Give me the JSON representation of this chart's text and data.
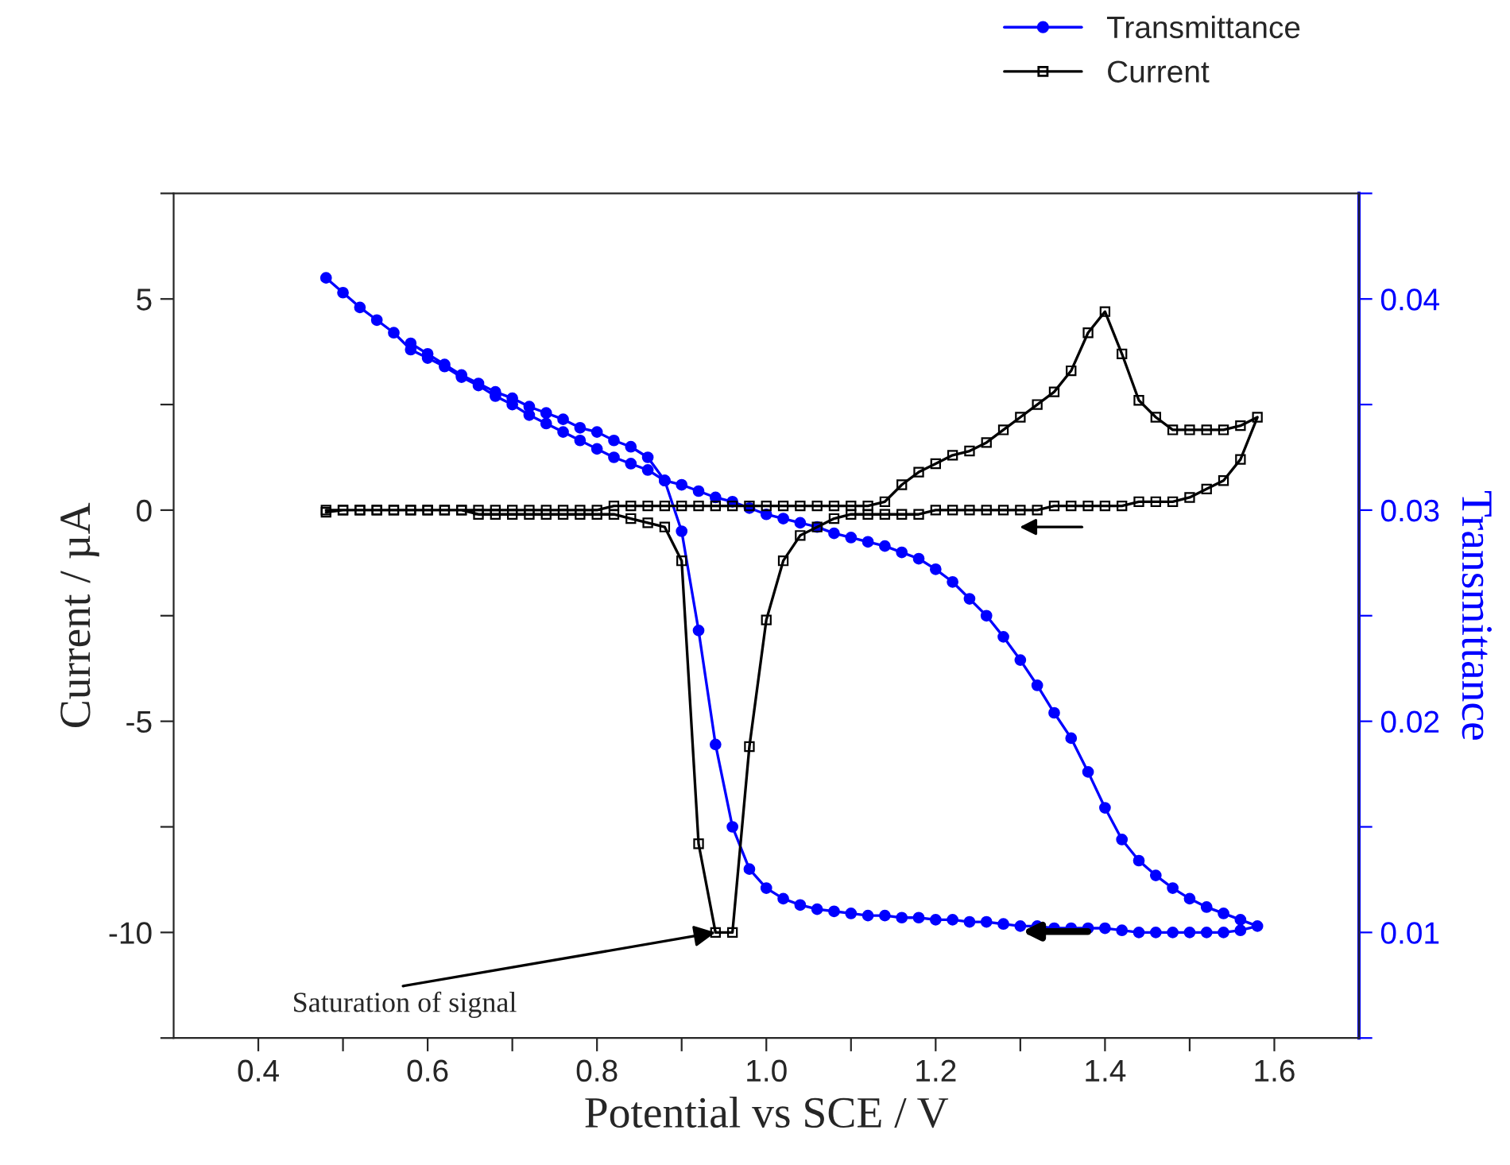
{
  "chart_data": {
    "type": "line",
    "xlabel": "Potential vs SCE / V",
    "ylabel": "Current / µA",
    "y2label": "Transmittance",
    "xlim": [
      0.3,
      1.7
    ],
    "xticks": [
      0.4,
      {
        "value": 0.5,
        "label": null
      },
      0.6,
      {
        "value": 0.7,
        "label": null
      },
      0.8,
      {
        "value": 0.9,
        "label": null
      },
      {
        "value": 1.0,
        "label": "1.0"
      },
      {
        "value": 1.1,
        "label": null
      },
      1.2,
      {
        "value": 1.3,
        "label": null
      },
      1.4,
      {
        "value": 1.5,
        "label": null
      },
      1.6
    ],
    "ylim": [
      -12.5,
      7.5
    ],
    "yticks": [
      {
        "value": -12.5,
        "label": null
      },
      -10,
      {
        "value": -7.5,
        "label": null
      },
      -5,
      {
        "value": -2.5,
        "label": null
      },
      0,
      {
        "value": 2.5,
        "label": null
      },
      5,
      {
        "value": 7.5,
        "label": null
      }
    ],
    "y2lim": [
      0.005,
      0.045
    ],
    "y2ticks": [
      {
        "value": 0.005,
        "label": null
      },
      0.01,
      {
        "value": 0.015,
        "label": null
      },
      0.02,
      {
        "value": 0.025,
        "label": null
      },
      0.03,
      {
        "value": 0.035,
        "label": null
      },
      0.04,
      {
        "value": 0.045,
        "label": null
      }
    ],
    "legend": "top right",
    "grid": false,
    "series": [
      {
        "name": "Transmittance",
        "color": "#0000ff",
        "axis": "y2",
        "marker": "circle",
        "x": [
          0.48,
          0.5,
          0.52,
          0.54,
          0.56,
          0.58,
          0.6,
          0.62,
          0.64,
          0.66,
          0.68,
          0.7,
          0.72,
          0.74,
          0.76,
          0.78,
          0.8,
          0.82,
          0.84,
          0.86,
          0.88,
          0.9,
          0.92,
          0.94,
          0.96,
          0.98,
          1.0,
          1.02,
          1.04,
          1.06,
          1.08,
          1.1,
          1.12,
          1.14,
          1.16,
          1.18,
          1.2,
          1.22,
          1.24,
          1.26,
          1.28,
          1.3,
          1.32,
          1.34,
          1.36,
          1.38,
          1.4,
          1.42,
          1.44,
          1.46,
          1.48,
          1.5,
          1.52,
          1.54,
          1.56,
          1.58,
          1.56,
          1.54,
          1.52,
          1.5,
          1.48,
          1.46,
          1.44,
          1.42,
          1.4,
          1.38,
          1.36,
          1.34,
          1.32,
          1.3,
          1.28,
          1.26,
          1.24,
          1.22,
          1.2,
          1.18,
          1.16,
          1.14,
          1.12,
          1.1,
          1.08,
          1.06,
          1.04,
          1.02,
          1.0,
          0.98,
          0.96,
          0.94,
          0.92,
          0.9,
          0.88,
          0.86,
          0.84,
          0.82,
          0.8,
          0.78,
          0.76,
          0.74,
          0.72,
          0.7,
          0.68,
          0.66,
          0.64,
          0.62,
          0.6,
          0.58
        ],
        "values": [
          0.041,
          0.0403,
          0.0396,
          0.039,
          0.0384,
          0.0376,
          0.0372,
          0.0368,
          0.0363,
          0.0359,
          0.0354,
          0.035,
          0.0345,
          0.0341,
          0.0337,
          0.0333,
          0.0329,
          0.0325,
          0.0322,
          0.0319,
          0.0314,
          0.0312,
          0.0309,
          0.0306,
          0.0304,
          0.0301,
          0.0298,
          0.0296,
          0.0294,
          0.0292,
          0.0289,
          0.0287,
          0.0285,
          0.0283,
          0.028,
          0.0277,
          0.0272,
          0.0266,
          0.0258,
          0.025,
          0.024,
          0.0229,
          0.0217,
          0.0204,
          0.0192,
          0.0176,
          0.0159,
          0.0144,
          0.0134,
          0.0127,
          0.0121,
          0.0116,
          0.0112,
          0.0109,
          0.0106,
          0.0103,
          0.0101,
          0.01,
          0.01,
          0.01,
          0.01,
          0.01,
          0.01,
          0.0101,
          0.0102,
          0.0102,
          0.0102,
          0.0102,
          0.0103,
          0.0103,
          0.0104,
          0.0105,
          0.0105,
          0.0106,
          0.0106,
          0.0107,
          0.0107,
          0.0108,
          0.0108,
          0.0109,
          0.011,
          0.0111,
          0.0113,
          0.0116,
          0.0121,
          0.013,
          0.015,
          0.0189,
          0.0243,
          0.029,
          0.0314,
          0.0325,
          0.033,
          0.0333,
          0.0337,
          0.0339,
          0.0343,
          0.0346,
          0.0349,
          0.0353,
          0.0356,
          0.036,
          0.0364,
          0.0369,
          0.0374,
          0.0379
        ]
      },
      {
        "name": "Current",
        "color": "#000000",
        "axis": "y",
        "marker": "square",
        "x": [
          0.48,
          0.5,
          0.52,
          0.54,
          0.56,
          0.58,
          0.6,
          0.62,
          0.64,
          0.66,
          0.68,
          0.7,
          0.72,
          0.74,
          0.76,
          0.78,
          0.8,
          0.82,
          0.84,
          0.86,
          0.88,
          0.9,
          0.92,
          0.94,
          0.96,
          0.98,
          1.0,
          1.02,
          1.04,
          1.06,
          1.08,
          1.1,
          1.12,
          1.14,
          1.16,
          1.18,
          1.2,
          1.22,
          1.24,
          1.26,
          1.28,
          1.3,
          1.32,
          1.34,
          1.36,
          1.38,
          1.4,
          1.42,
          1.44,
          1.46,
          1.48,
          1.5,
          1.52,
          1.54,
          1.56,
          1.58,
          1.56,
          1.54,
          1.52,
          1.5,
          1.48,
          1.46,
          1.44,
          1.42,
          1.4,
          1.38,
          1.36,
          1.34,
          1.32,
          1.3,
          1.28,
          1.26,
          1.24,
          1.22,
          1.2,
          1.18,
          1.16,
          1.14,
          1.12,
          1.1,
          1.08,
          1.06,
          1.04,
          1.02,
          1.0,
          0.98,
          0.96,
          0.94,
          0.92,
          0.9,
          0.88,
          0.86,
          0.84,
          0.82,
          0.8,
          0.78,
          0.76,
          0.74,
          0.72,
          0.7,
          0.68,
          0.66,
          0.64,
          0.62,
          0.6,
          0.58,
          0.56,
          0.54,
          0.52,
          0.5,
          0.48
        ],
        "values": [
          0,
          0,
          0,
          0,
          0,
          0,
          0,
          0,
          0,
          0,
          0,
          0,
          0,
          0,
          0,
          0,
          0,
          0.1,
          0.1,
          0.1,
          0.1,
          0.1,
          0.1,
          0.1,
          0.1,
          0.1,
          0.1,
          0.1,
          0.1,
          0.1,
          0.1,
          0.1,
          0.1,
          0.2,
          0.6,
          0.9,
          1.1,
          1.3,
          1.4,
          1.6,
          1.9,
          2.2,
          2.5,
          2.8,
          3.3,
          4.2,
          4.7,
          3.7,
          2.6,
          2.2,
          1.9,
          1.9,
          1.9,
          1.9,
          2.0,
          2.2,
          1.2,
          0.7,
          0.5,
          0.3,
          0.2,
          0.2,
          0.2,
          0.1,
          0.1,
          0.1,
          0.1,
          0.1,
          0,
          0,
          0,
          0,
          0,
          0,
          0,
          -0.1,
          -0.1,
          -0.1,
          -0.1,
          -0.1,
          -0.2,
          -0.4,
          -0.6,
          -1.2,
          -2.6,
          -5.6,
          -10,
          -10,
          -7.9,
          -1.2,
          -0.4,
          -0.3,
          -0.2,
          -0.1,
          -0.1,
          -0.1,
          -0.1,
          -0.1,
          -0.1,
          -0.1,
          -0.1,
          -0.1,
          0,
          0,
          0,
          0,
          0,
          0,
          0,
          0,
          -0.05
        ]
      }
    ],
    "annotations": [
      {
        "text": "Saturation of signal",
        "x": 0.94,
        "y": -10
      }
    ]
  }
}
